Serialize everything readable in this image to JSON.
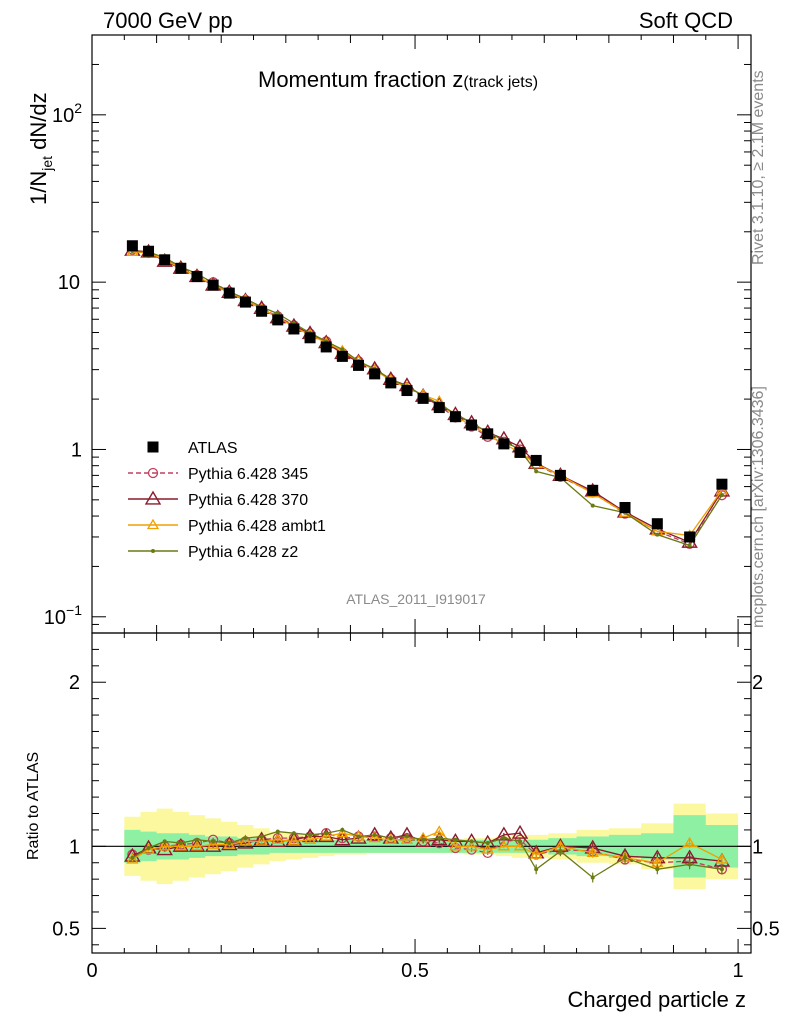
{
  "header": {
    "left_label": "7000 GeV pp",
    "right_label": "Soft QCD"
  },
  "side_labels": {
    "rivet": "Rivet 3.1.10, ≥ 2.1M events",
    "mcplots": "mcplots.cern.ch [arXiv:1306.3436]"
  },
  "analysis_id": "ATLAS_2011_I919017",
  "chart_data": {
    "type": "scatter",
    "title": "Momentum fraction z",
    "title_sub": "(track jets)",
    "xlabel": "Charged particle z",
    "ylabel_main": "1/N",
    "ylabel_sub": "jet",
    "ylabel_tail": " dN/dz",
    "ratio_ylabel": "Ratio to ATLAS",
    "xlim": [
      0,
      1.02
    ],
    "ylim": [
      0.08,
      300
    ],
    "yscale": "log",
    "ratio_ylim": [
      0.35,
      2.3
    ],
    "x_ticks": [
      "0",
      "0.5",
      "1"
    ],
    "x_tick_values": [
      0,
      0.5,
      1
    ],
    "y_ticks": [
      "10",
      "1",
      "10"
    ],
    "y_tick_sup": [
      "−1",
      "",
      "2"
    ],
    "y_tick_values": [
      0.1,
      1,
      100
    ],
    "y_tick_10_label": "10",
    "y_tick_10_value": 10,
    "ratio_ticks": [
      "0.5",
      "1",
      "2"
    ],
    "ratio_tick_values": [
      0.5,
      1,
      2
    ],
    "legend_position": "middle-left",
    "x": [
      0.0625,
      0.0875,
      0.1125,
      0.1375,
      0.1625,
      0.1875,
      0.2125,
      0.2375,
      0.2625,
      0.2875,
      0.3125,
      0.3375,
      0.3625,
      0.3875,
      0.4125,
      0.4375,
      0.4625,
      0.4875,
      0.5125,
      0.5375,
      0.5625,
      0.5875,
      0.6125,
      0.6375,
      0.6625,
      0.6875,
      0.725,
      0.775,
      0.825,
      0.875,
      0.925,
      0.975
    ],
    "atlas": {
      "name": "ATLAS",
      "values": [
        16.5,
        15.3,
        13.6,
        12.1,
        10.8,
        9.6,
        8.6,
        7.6,
        6.7,
        5.95,
        5.25,
        4.65,
        4.1,
        3.6,
        3.18,
        2.83,
        2.5,
        2.25,
        2.02,
        1.78,
        1.57,
        1.4,
        1.24,
        1.08,
        0.96,
        0.86,
        0.7,
        0.57,
        0.45,
        0.36,
        0.3,
        0.62
      ],
      "band_inner": [
        0.1,
        0.09,
        0.08,
        0.08,
        0.07,
        0.06,
        0.06,
        0.05,
        0.05,
        0.04,
        0.04,
        0.04,
        0.04,
        0.04,
        0.04,
        0.04,
        0.04,
        0.04,
        0.04,
        0.04,
        0.04,
        0.04,
        0.04,
        0.04,
        0.04,
        0.04,
        0.05,
        0.06,
        0.07,
        0.08,
        0.19,
        0.13
      ],
      "band_outer": [
        0.18,
        0.21,
        0.23,
        0.21,
        0.19,
        0.17,
        0.15,
        0.13,
        0.11,
        0.09,
        0.08,
        0.07,
        0.06,
        0.05,
        0.05,
        0.04,
        0.04,
        0.04,
        0.04,
        0.04,
        0.04,
        0.05,
        0.05,
        0.06,
        0.07,
        0.07,
        0.08,
        0.1,
        0.11,
        0.14,
        0.26,
        0.2
      ]
    },
    "series": [
      {
        "name": "Pythia 6.428 345",
        "color": "#c0405f",
        "marker": "circle",
        "dash": "5,3",
        "ratio": [
          0.95,
          0.98,
          1.0,
          1.01,
          1.02,
          1.04,
          1.02,
          1.03,
          1.04,
          1.05,
          1.05,
          1.06,
          1.08,
          1.05,
          1.06,
          1.06,
          1.05,
          1.05,
          1.03,
          1.02,
          0.99,
          0.98,
          0.96,
          1.03,
          1.04,
          0.95,
          0.98,
          0.97,
          0.92,
          0.9,
          0.91,
          0.86
        ]
      },
      {
        "name": "Pythia 6.428 370",
        "color": "#8b1a2b",
        "marker": "triangle",
        "dash": "",
        "ratio": [
          0.94,
          0.99,
          0.98,
          1.0,
          1.0,
          1.0,
          1.01,
          1.02,
          1.04,
          1.03,
          1.04,
          1.06,
          1.06,
          1.04,
          1.05,
          1.07,
          1.05,
          1.07,
          1.03,
          1.04,
          1.03,
          1.03,
          1.02,
          1.07,
          1.08,
          0.96,
          1.0,
          0.99,
          0.94,
          0.93,
          0.93,
          0.91
        ]
      },
      {
        "name": "Pythia 6.428 ambt1",
        "color": "#f0a000",
        "marker": "triangle-open",
        "dash": "",
        "ratio": [
          0.92,
          0.98,
          1.0,
          1.0,
          1.0,
          1.01,
          1.01,
          1.03,
          1.03,
          1.04,
          1.03,
          1.04,
          1.06,
          1.08,
          1.06,
          1.05,
          1.04,
          1.04,
          1.05,
          1.09,
          1.0,
          1.0,
          0.98,
          1.0,
          1.0,
          0.95,
          1.0,
          0.96,
          0.93,
          0.9,
          1.02,
          0.92
        ]
      },
      {
        "name": "Pythia 6.428 z2",
        "color": "#6b7a12",
        "marker": "dot",
        "dash": "",
        "ratio": [
          0.93,
          0.99,
          1.03,
          1.02,
          1.04,
          1.03,
          1.02,
          1.05,
          1.06,
          1.09,
          1.08,
          1.07,
          1.08,
          1.1,
          1.06,
          1.07,
          1.05,
          1.06,
          1.04,
          1.05,
          1.04,
          1.03,
          1.02,
          1.05,
          1.03,
          0.86,
          0.97,
          0.81,
          0.93,
          0.86,
          0.89,
          0.86
        ]
      }
    ]
  }
}
